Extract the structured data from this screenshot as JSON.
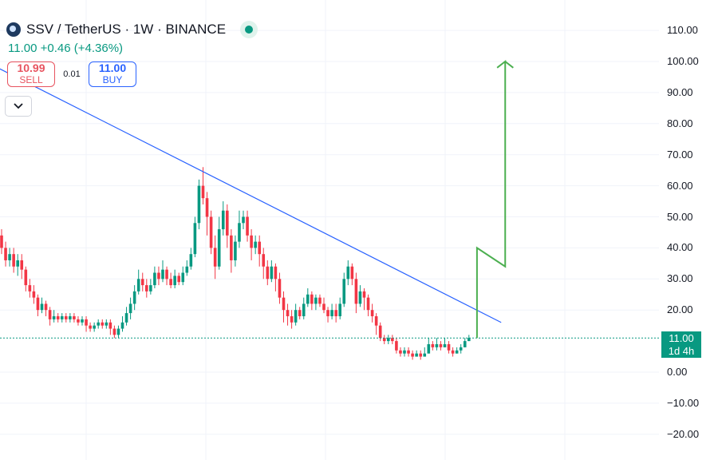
{
  "header": {
    "symbol": "SSV / TetherUS · 1W · BINANCE"
  },
  "quote": {
    "last": "11.00",
    "change": "+0.46",
    "change_pct": "(+4.36%)"
  },
  "trade": {
    "sell_price": "10.99",
    "sell_label": "SELL",
    "spread": "0.01",
    "buy_price": "11.00",
    "buy_label": "BUY"
  },
  "last_price_label": {
    "price": "11.00",
    "countdown": "1d 4h"
  },
  "colors": {
    "up": "#089981",
    "down": "#f23645",
    "trendline": "#2962ff",
    "projection": "#4caf50"
  },
  "icons": {
    "collapse": "chevron-down-icon",
    "logo": "ssv-logo-icon",
    "live": "live-status-dot-icon"
  },
  "chart_data": {
    "type": "candlestick",
    "interval": "1W",
    "y_axis": {
      "ylim": [
        -23,
        115
      ],
      "ticks": [
        110,
        100,
        90,
        80,
        70,
        60,
        50,
        40,
        30,
        20,
        11,
        0,
        -10,
        -20
      ],
      "tick_labels": [
        "110.00",
        "100.00",
        "90.00",
        "80.00",
        "70.00",
        "60.00",
        "50.00",
        "40.00",
        "30.00",
        "20.00",
        "",
        "0.00",
        "−10.00",
        "−20.00"
      ]
    },
    "grid": true,
    "candles": [
      [
        44,
        40,
        46,
        38
      ],
      [
        40,
        36,
        42,
        34
      ],
      [
        36,
        38,
        40,
        34
      ],
      [
        38,
        34,
        40,
        32
      ],
      [
        34,
        36,
        38,
        31
      ],
      [
        36,
        33,
        38,
        30
      ],
      [
        33,
        28,
        34,
        26
      ],
      [
        28,
        26,
        30,
        24
      ],
      [
        26,
        24,
        28,
        22
      ],
      [
        24,
        20,
        25,
        18
      ],
      [
        20,
        22,
        24,
        19
      ],
      [
        22,
        20,
        23,
        18
      ],
      [
        20,
        17,
        21,
        15
      ],
      [
        17,
        18,
        20,
        16
      ],
      [
        18,
        17,
        19,
        16
      ],
      [
        17,
        18,
        19,
        16
      ],
      [
        18,
        17,
        19,
        16
      ],
      [
        17,
        18,
        19,
        16
      ],
      [
        18,
        17,
        19,
        16
      ],
      [
        17,
        16,
        18,
        15
      ],
      [
        16,
        17,
        18,
        15
      ],
      [
        17,
        15,
        18,
        13
      ],
      [
        15,
        14,
        16,
        13
      ],
      [
        14,
        15,
        16,
        13
      ],
      [
        15,
        16,
        17,
        14
      ],
      [
        16,
        15,
        17,
        14
      ],
      [
        15,
        16,
        17,
        14
      ],
      [
        16,
        14,
        17,
        12
      ],
      [
        14,
        12,
        15,
        11
      ],
      [
        12,
        14,
        15,
        11
      ],
      [
        14,
        16,
        18,
        13
      ],
      [
        16,
        19,
        21,
        15
      ],
      [
        19,
        22,
        24,
        17
      ],
      [
        22,
        26,
        28,
        20
      ],
      [
        26,
        30,
        33,
        25
      ],
      [
        30,
        28,
        32,
        26
      ],
      [
        28,
        26,
        30,
        24
      ],
      [
        26,
        28,
        30,
        25
      ],
      [
        28,
        32,
        34,
        27
      ],
      [
        32,
        30,
        34,
        28
      ],
      [
        30,
        33,
        36,
        29
      ],
      [
        33,
        30,
        34,
        28
      ],
      [
        30,
        28,
        32,
        27
      ],
      [
        28,
        31,
        33,
        27
      ],
      [
        31,
        29,
        32,
        28
      ],
      [
        29,
        32,
        34,
        28
      ],
      [
        32,
        34,
        36,
        31
      ],
      [
        34,
        38,
        40,
        33
      ],
      [
        38,
        48,
        50,
        37
      ],
      [
        48,
        60,
        62,
        46
      ],
      [
        60,
        56,
        66,
        54
      ],
      [
        56,
        50,
        58,
        44
      ],
      [
        50,
        40,
        52,
        38
      ],
      [
        40,
        34,
        44,
        30
      ],
      [
        34,
        46,
        50,
        33
      ],
      [
        46,
        52,
        55,
        44
      ],
      [
        52,
        44,
        54,
        40
      ],
      [
        44,
        36,
        46,
        32
      ],
      [
        36,
        42,
        44,
        34
      ],
      [
        42,
        48,
        52,
        40
      ],
      [
        48,
        50,
        52,
        46
      ],
      [
        50,
        44,
        52,
        42
      ],
      [
        44,
        40,
        46,
        36
      ],
      [
        40,
        42,
        44,
        38
      ],
      [
        42,
        38,
        44,
        34
      ],
      [
        38,
        34,
        40,
        30
      ],
      [
        34,
        30,
        36,
        28
      ],
      [
        30,
        34,
        36,
        29
      ],
      [
        34,
        30,
        35,
        26
      ],
      [
        30,
        24,
        32,
        22
      ],
      [
        24,
        20,
        26,
        16
      ],
      [
        20,
        18,
        22,
        15
      ],
      [
        18,
        16,
        20,
        14
      ],
      [
        16,
        20,
        22,
        15
      ],
      [
        20,
        18,
        21,
        17
      ],
      [
        18,
        22,
        24,
        17
      ],
      [
        22,
        25,
        27,
        21
      ],
      [
        25,
        22,
        26,
        20
      ],
      [
        22,
        24,
        25,
        20
      ],
      [
        24,
        22,
        25,
        21
      ],
      [
        22,
        20,
        24,
        19
      ],
      [
        20,
        18,
        21,
        16
      ],
      [
        18,
        20,
        22,
        17
      ],
      [
        20,
        18,
        22,
        16
      ],
      [
        18,
        22,
        24,
        17
      ],
      [
        22,
        30,
        32,
        21
      ],
      [
        30,
        34,
        36,
        28
      ],
      [
        34,
        30,
        35,
        28
      ],
      [
        30,
        22,
        32,
        19
      ],
      [
        22,
        26,
        28,
        21
      ],
      [
        26,
        24,
        27,
        20
      ],
      [
        24,
        20,
        25,
        18
      ],
      [
        20,
        18,
        22,
        16
      ],
      [
        18,
        15,
        19,
        12
      ],
      [
        15,
        11,
        16,
        10
      ],
      [
        11,
        10,
        12,
        9
      ],
      [
        10,
        11,
        12,
        9
      ],
      [
        11,
        10,
        12,
        9
      ],
      [
        10,
        7,
        11,
        6
      ],
      [
        7,
        6,
        8,
        5
      ],
      [
        6,
        7,
        8,
        5
      ],
      [
        7,
        6,
        8,
        5
      ],
      [
        6,
        5,
        7,
        4
      ],
      [
        5,
        6,
        7,
        5
      ],
      [
        6,
        5,
        7,
        4
      ],
      [
        5,
        6,
        8,
        5
      ],
      [
        6,
        9,
        11,
        6
      ],
      [
        9,
        8,
        10,
        7
      ],
      [
        8,
        9,
        11,
        7
      ],
      [
        9,
        8,
        10,
        7
      ],
      [
        8,
        9,
        11,
        8
      ],
      [
        9,
        7,
        10,
        6
      ],
      [
        7,
        6,
        8,
        5
      ],
      [
        6,
        7,
        8,
        6
      ],
      [
        7,
        8,
        9,
        6
      ],
      [
        8,
        10,
        11,
        8
      ],
      [
        10,
        11,
        12,
        10
      ]
    ],
    "trendline": {
      "from": [
        -1,
        98
      ],
      "to": [
        124,
        16
      ]
    },
    "projection": [
      [
        118,
        11
      ],
      [
        118,
        40
      ],
      [
        125,
        34
      ],
      [
        125,
        100
      ],
      [
        123,
        98
      ],
      [
        125,
        100
      ],
      [
        127,
        98
      ]
    ],
    "last_price": 11.0
  }
}
